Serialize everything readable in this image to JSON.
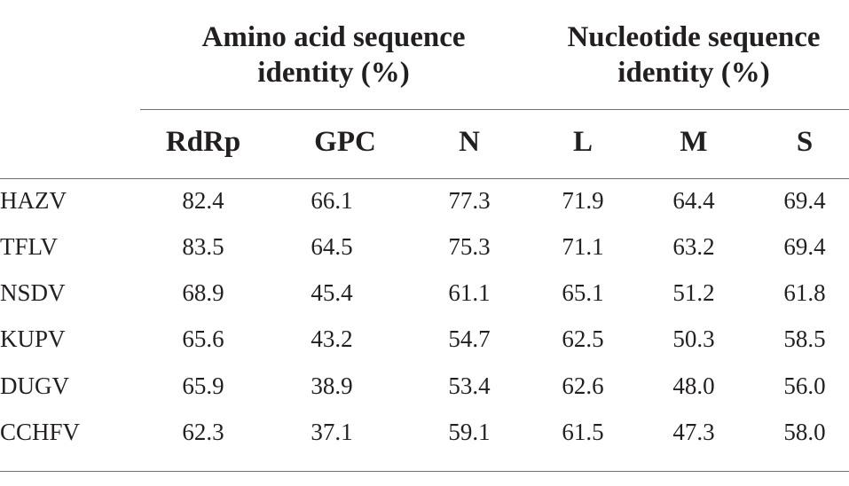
{
  "header": {
    "amino_group": [
      "Amino acid sequence",
      "identity (%)"
    ],
    "nucleotide_group": [
      "Nucleotide sequence",
      "identity (%)"
    ],
    "columns": [
      "RdRp",
      "GPC",
      "N",
      "L",
      "M",
      "S"
    ]
  },
  "rows": [
    {
      "label": "HAZV",
      "values": [
        "82.4",
        "66.1",
        "77.3",
        "71.9",
        "64.4",
        "69.4"
      ]
    },
    {
      "label": "TFLV",
      "values": [
        "83.5",
        "64.5",
        "75.3",
        "71.1",
        "63.2",
        "69.4"
      ]
    },
    {
      "label": "NSDV",
      "values": [
        "68.9",
        "45.4",
        "61.1",
        "65.1",
        "51.2",
        "61.8"
      ]
    },
    {
      "label": "KUPV",
      "values": [
        "65.6",
        "43.2",
        "54.7",
        "62.5",
        "50.3",
        "58.5"
      ]
    },
    {
      "label": "DUGV",
      "values": [
        "65.9",
        "38.9",
        "53.4",
        "62.6",
        "48.0",
        "56.0"
      ]
    },
    {
      "label": "CCHFV",
      "values": [
        "62.3",
        "37.1",
        "59.1",
        "61.5",
        "47.3",
        "58.0"
      ]
    }
  ]
}
